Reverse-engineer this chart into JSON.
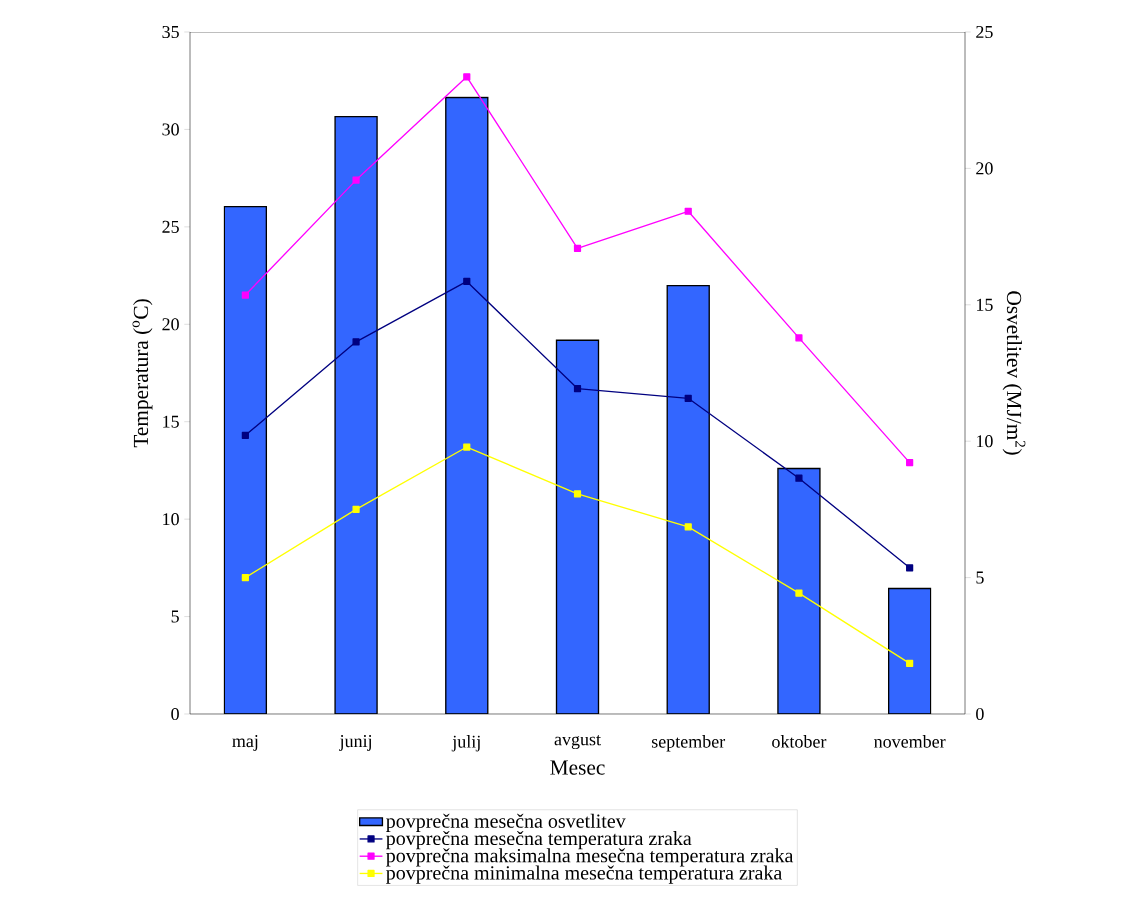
{
  "chart_data": {
    "type": "bar",
    "xlabel": "Mesec",
    "ylabel": "Temperatura ($^{o}$C)",
    "y2label": "Osvetlitev (MJ/m$^{2}$)",
    "categories": [
      "maj",
      "junij",
      "julij",
      "avgust",
      "september",
      "oktober",
      "november"
    ],
    "series": [
      {
        "name": "povprečna mesečna osvetlitev",
        "axis": "y2",
        "color": "#3366ff",
        "values": [
          18.6,
          21.9,
          22.6,
          13.7,
          15.7,
          9.0,
          4.6
        ]
      },
      {
        "name": "povprečna mesečna temperatura zraka",
        "type": "line",
        "color": "#000080",
        "values": [
          14.3,
          19.1,
          22.2,
          16.7,
          16.2,
          12.1,
          7.5
        ]
      },
      {
        "name": "povprečna maksimalna mesečna temperatura zraka",
        "type": "line",
        "color": "#ff00ff",
        "values": [
          21.5,
          27.4,
          32.7,
          23.9,
          25.8,
          19.3,
          12.9
        ]
      },
      {
        "name": "povprečna minimalna mesečna temperatura zraka",
        "type": "line",
        "color": "#ffff00",
        "values": [
          7.0,
          10.5,
          13.7,
          11.3,
          9.6,
          6.2,
          2.6
        ]
      }
    ],
    "ylim": [
      0,
      35
    ],
    "yticks": [
      0,
      5,
      10,
      15,
      20,
      25,
      30,
      35
    ],
    "y2lim": [
      0,
      25
    ],
    "y2ticks": [
      0,
      5,
      10,
      15,
      20,
      25
    ],
    "legend": "bottom",
    "marker": "square"
  }
}
